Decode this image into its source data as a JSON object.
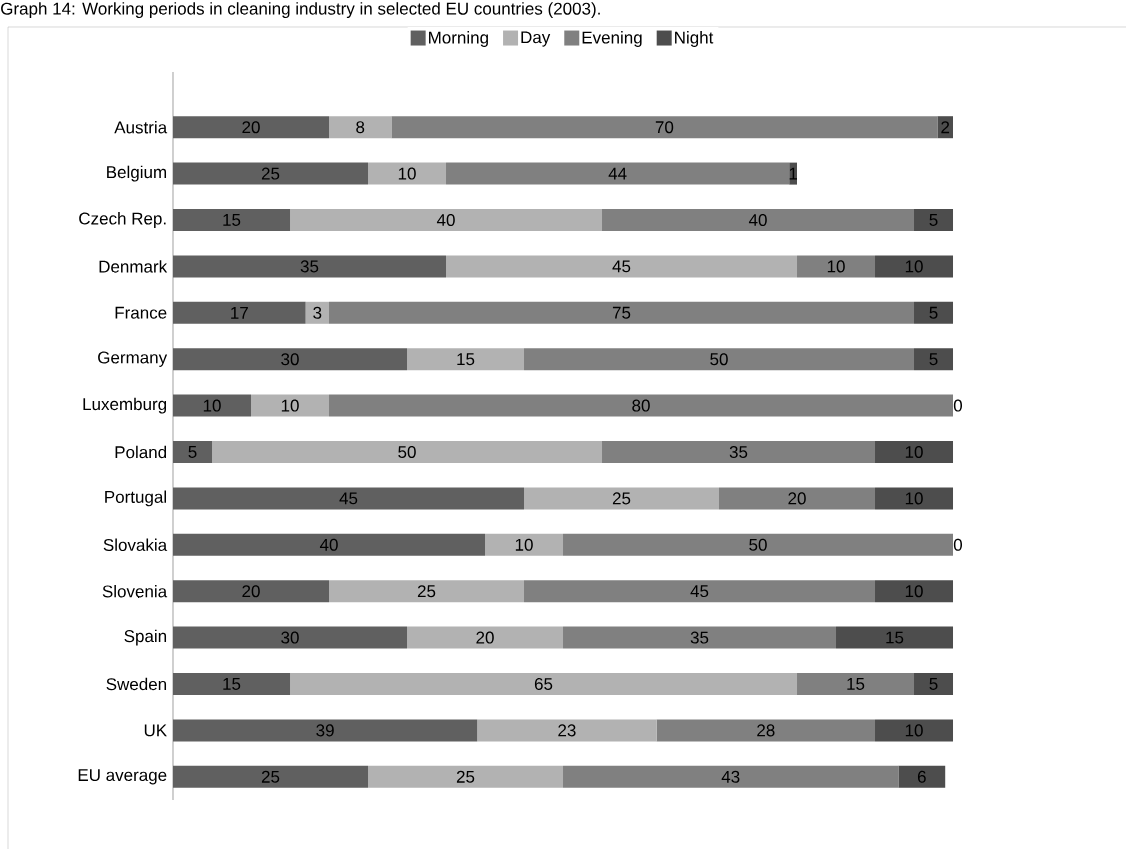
{
  "chart_data": {
    "type": "bar",
    "orientation": "horizontal",
    "stacked": true,
    "data_labels": true,
    "legend": "top",
    "title": "Graph 14: Working periods in cleaning industry in selected EU countries (2003).",
    "categories": [
      "Austria",
      "Belgium",
      "Czech Rep.",
      "Denmark",
      "France",
      "Germany",
      "Luxemburg",
      "Poland",
      "Portugal",
      "Slovakia",
      "Slovenia",
      "Spain",
      "Sweden",
      "UK",
      "EU average"
    ],
    "series": [
      {
        "name": "Morning",
        "color": "#606060",
        "values": [
          20,
          25,
          15,
          35,
          17,
          30,
          10,
          5,
          45,
          40,
          20,
          30,
          15,
          39,
          25
        ]
      },
      {
        "name": "Day",
        "color": "#b2b2b2",
        "values": [
          8,
          10,
          40,
          45,
          3,
          15,
          10,
          50,
          25,
          10,
          25,
          20,
          65,
          23,
          25
        ]
      },
      {
        "name": "Evening",
        "color": "#808080",
        "values": [
          70,
          44,
          40,
          10,
          75,
          50,
          80,
          35,
          20,
          50,
          45,
          35,
          15,
          28,
          43
        ]
      },
      {
        "name": "Night",
        "color": "#4d4d4d",
        "values": [
          2,
          1,
          5,
          10,
          5,
          5,
          0,
          10,
          10,
          0,
          10,
          15,
          5,
          10,
          6
        ]
      }
    ]
  }
}
